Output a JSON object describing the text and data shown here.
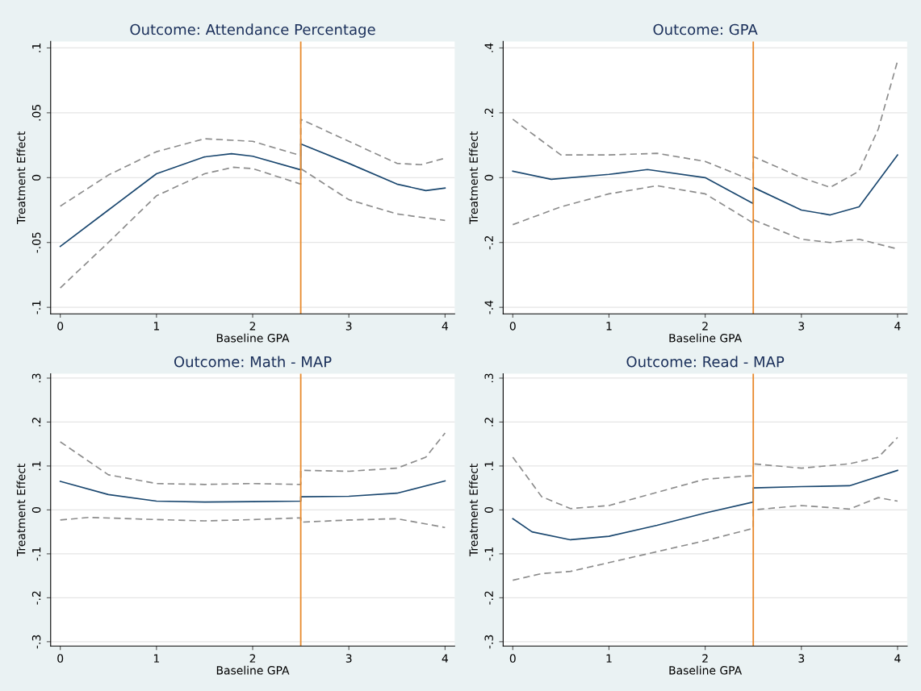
{
  "chart_data": [
    {
      "type": "line",
      "title": "Outcome: Attendance Percentage",
      "xlabel": "Baseline GPA",
      "ylabel": "Treatment Effect",
      "xlim": [
        -0.1,
        4.1
      ],
      "xticks": [
        0,
        1,
        2,
        3,
        4
      ],
      "ylim": [
        -0.105,
        0.105
      ],
      "yticks": [
        {
          "value": -0.1,
          "label": "-.1"
        },
        {
          "value": -0.05,
          "label": "-.05"
        },
        0,
        {
          "value": 0.05,
          "label": ".05"
        },
        {
          "value": 0.1,
          "label": ".1"
        }
      ],
      "grid": "y",
      "series": [
        {
          "color": "#1a476f",
          "line_style": "solid",
          "x": [
            0,
            0.5,
            1,
            1.5,
            1.78,
            2,
            2.5,
            2.5,
            3,
            3.5,
            3.8,
            4
          ],
          "values": [
            -0.053,
            -0.025,
            0.003,
            0.016,
            0.0185,
            0.0165,
            0.006,
            0.026,
            0.011,
            -0.005,
            -0.01,
            -0.008
          ]
        },
        {
          "color": "#8c8c8c",
          "line_style": "dashed",
          "x": [
            0,
            0.5,
            1,
            1.5,
            2,
            2.5,
            2.5,
            3,
            3.5,
            3.75,
            4
          ],
          "values": [
            -0.022,
            0.002,
            0.02,
            0.03,
            0.028,
            0.017,
            0.045,
            0.028,
            0.011,
            0.01,
            0.015
          ]
        },
        {
          "color": "#8c8c8c",
          "line_style": "dashed",
          "x": [
            0,
            0.5,
            1,
            1.5,
            1.8,
            2,
            2.5,
            2.5,
            3,
            3.5,
            4
          ],
          "values": [
            -0.085,
            -0.05,
            -0.014,
            0.003,
            0.008,
            0.007,
            -0.005,
            0.007,
            -0.017,
            -0.028,
            -0.033
          ]
        }
      ],
      "ref_lines": [
        {
          "axis": "x",
          "value": 2.5,
          "color": "#e8892b"
        }
      ]
    },
    {
      "type": "line",
      "title": "Outcome: GPA",
      "xlabel": "Baseline GPA",
      "ylabel": "Treatment Effect",
      "xlim": [
        -0.1,
        4.1
      ],
      "xticks": [
        0,
        1,
        2,
        3,
        4
      ],
      "ylim": [
        -0.42,
        0.42
      ],
      "yticks": [
        {
          "value": -0.4,
          "label": "-.4"
        },
        {
          "value": -0.2,
          "label": "-.2"
        },
        0,
        {
          "value": 0.2,
          "label": ".2"
        },
        {
          "value": 0.4,
          "label": ".4"
        }
      ],
      "grid": "y",
      "series": [
        {
          "color": "#1a476f",
          "line_style": "solid",
          "x": [
            0,
            0.4,
            1,
            1.4,
            2,
            2.5,
            2.5,
            3,
            3.3,
            3.6,
            4
          ],
          "values": [
            0.02,
            -0.005,
            0.01,
            0.025,
            0.0,
            -0.08,
            -0.03,
            -0.1,
            -0.115,
            -0.09,
            0.07
          ]
        },
        {
          "color": "#8c8c8c",
          "line_style": "dashed",
          "x": [
            0,
            0.5,
            1,
            1.5,
            2,
            2.5,
            2.5,
            3,
            3.3,
            3.6,
            3.8,
            4
          ],
          "values": [
            0.18,
            0.07,
            0.07,
            0.075,
            0.05,
            -0.01,
            0.065,
            0.0,
            -0.03,
            0.02,
            0.15,
            0.36
          ]
        },
        {
          "color": "#8c8c8c",
          "line_style": "dashed",
          "x": [
            0,
            0.5,
            1,
            1.5,
            2,
            2.5,
            2.5,
            3,
            3.3,
            3.6,
            4
          ],
          "values": [
            -0.145,
            -0.09,
            -0.05,
            -0.025,
            -0.05,
            -0.14,
            -0.13,
            -0.19,
            -0.2,
            -0.19,
            -0.22
          ]
        }
      ],
      "ref_lines": [
        {
          "axis": "x",
          "value": 2.5,
          "color": "#e8892b"
        }
      ]
    },
    {
      "type": "line",
      "title": "Outcome: Math - MAP",
      "xlabel": "Baseline GPA",
      "ylabel": "Treatment Effect",
      "xlim": [
        -0.1,
        4.1
      ],
      "xticks": [
        0,
        1,
        2,
        3,
        4
      ],
      "ylim": [
        -0.31,
        0.31
      ],
      "yticks": [
        {
          "value": -0.3,
          "label": "-.3"
        },
        {
          "value": -0.2,
          "label": "-.2"
        },
        {
          "value": -0.1,
          "label": "-.1"
        },
        0,
        {
          "value": 0.1,
          "label": ".1"
        },
        {
          "value": 0.2,
          "label": ".2"
        },
        {
          "value": 0.3,
          "label": ".3"
        }
      ],
      "grid": "y",
      "series": [
        {
          "color": "#1a476f",
          "line_style": "solid",
          "x": [
            0,
            0.5,
            1,
            1.5,
            2,
            2.5,
            2.5,
            3,
            3.5,
            4
          ],
          "values": [
            0.065,
            0.035,
            0.02,
            0.018,
            0.019,
            0.02,
            0.03,
            0.031,
            0.038,
            0.066
          ]
        },
        {
          "color": "#8c8c8c",
          "line_style": "dashed",
          "x": [
            0,
            0.5,
            1,
            1.5,
            2,
            2.5,
            2.5,
            3,
            3.5,
            3.8,
            4
          ],
          "values": [
            0.155,
            0.08,
            0.06,
            0.058,
            0.06,
            0.058,
            0.09,
            0.088,
            0.095,
            0.12,
            0.175
          ]
        },
        {
          "color": "#8c8c8c",
          "line_style": "dashed",
          "x": [
            0,
            0.3,
            1,
            1.5,
            2,
            2.5,
            2.5,
            3,
            3.5,
            4
          ],
          "values": [
            -0.023,
            -0.017,
            -0.022,
            -0.025,
            -0.022,
            -0.018,
            -0.028,
            -0.023,
            -0.02,
            -0.04
          ]
        }
      ],
      "ref_lines": [
        {
          "axis": "x",
          "value": 2.5,
          "color": "#e8892b"
        }
      ]
    },
    {
      "type": "line",
      "title": "Outcome: Read - MAP",
      "xlabel": "Baseline GPA",
      "ylabel": "Treatment Effect",
      "xlim": [
        -0.1,
        4.1
      ],
      "xticks": [
        0,
        1,
        2,
        3,
        4
      ],
      "ylim": [
        -0.31,
        0.31
      ],
      "yticks": [
        {
          "value": -0.3,
          "label": "-.3"
        },
        {
          "value": -0.2,
          "label": "-.2"
        },
        {
          "value": -0.1,
          "label": "-.1"
        },
        0,
        {
          "value": 0.1,
          "label": ".1"
        },
        {
          "value": 0.2,
          "label": ".2"
        },
        {
          "value": 0.3,
          "label": ".3"
        }
      ],
      "grid": "y",
      "series": [
        {
          "color": "#1a476f",
          "line_style": "solid",
          "x": [
            0,
            0.2,
            0.6,
            1,
            1.5,
            2,
            2.5,
            2.5,
            3,
            3.5,
            4
          ],
          "values": [
            -0.02,
            -0.05,
            -0.068,
            -0.06,
            -0.035,
            -0.007,
            0.018,
            0.05,
            0.053,
            0.055,
            0.09
          ]
        },
        {
          "color": "#8c8c8c",
          "line_style": "dashed",
          "x": [
            0,
            0.3,
            0.6,
            1,
            1.5,
            2,
            2.5,
            2.5,
            3,
            3.5,
            3.8,
            4
          ],
          "values": [
            0.12,
            0.03,
            0.003,
            0.01,
            0.04,
            0.07,
            0.078,
            0.105,
            0.095,
            0.105,
            0.12,
            0.165
          ]
        },
        {
          "color": "#8c8c8c",
          "line_style": "dashed",
          "x": [
            0,
            0.3,
            0.6,
            1,
            1.5,
            2,
            2.5,
            2.5,
            3,
            3.5,
            3.8,
            4
          ],
          "values": [
            -0.16,
            -0.145,
            -0.14,
            -0.12,
            -0.095,
            -0.07,
            -0.042,
            0.0,
            0.01,
            0.002,
            0.028,
            0.02
          ]
        }
      ],
      "ref_lines": [
        {
          "axis": "x",
          "value": 2.5,
          "color": "#e8892b"
        }
      ]
    }
  ]
}
